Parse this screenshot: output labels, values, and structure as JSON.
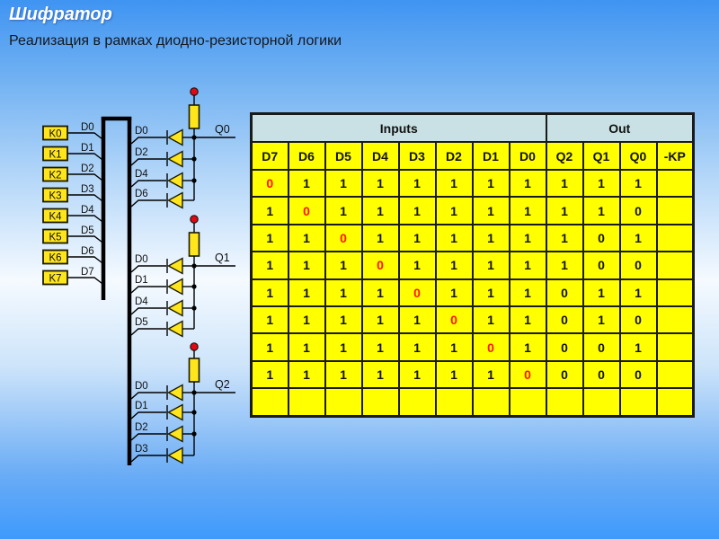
{
  "slide": {
    "title": "Шифратор",
    "subtitle": "Реализация в рамках диодно-резисторной логики"
  },
  "circuit": {
    "inputs": [
      {
        "k": "K0",
        "d": "D0"
      },
      {
        "k": "K1",
        "d": "D1"
      },
      {
        "k": "K2",
        "d": "D2"
      },
      {
        "k": "K3",
        "d": "D3"
      },
      {
        "k": "K4",
        "d": "D4"
      },
      {
        "k": "K5",
        "d": "D5"
      },
      {
        "k": "K6",
        "d": "D6"
      },
      {
        "k": "K7",
        "d": "D7"
      }
    ],
    "groups": [
      {
        "output": "Q0",
        "diodes": [
          "D0",
          "D2",
          "D4",
          "D6"
        ]
      },
      {
        "output": "Q1",
        "diodes": [
          "D0",
          "D1",
          "D4",
          "D5"
        ]
      },
      {
        "output": "Q2",
        "diodes": [
          "D0",
          "D1",
          "D2",
          "D3"
        ]
      }
    ]
  },
  "table": {
    "group_headers": [
      "Inputs",
      "Out"
    ],
    "columns": [
      "D7",
      "D6",
      "D5",
      "D4",
      "D3",
      "D2",
      "D1",
      "D0",
      "Q2",
      "Q1",
      "Q0",
      "-KP"
    ],
    "rows": [
      {
        "cells": [
          "0",
          "1",
          "1",
          "1",
          "1",
          "1",
          "1",
          "1",
          "1",
          "1",
          "1",
          ""
        ],
        "red_col": 0
      },
      {
        "cells": [
          "1",
          "0",
          "1",
          "1",
          "1",
          "1",
          "1",
          "1",
          "1",
          "1",
          "0",
          ""
        ],
        "red_col": 1
      },
      {
        "cells": [
          "1",
          "1",
          "0",
          "1",
          "1",
          "1",
          "1",
          "1",
          "1",
          "0",
          "1",
          ""
        ],
        "red_col": 2
      },
      {
        "cells": [
          "1",
          "1",
          "1",
          "0",
          "1",
          "1",
          "1",
          "1",
          "1",
          "0",
          "0",
          ""
        ],
        "red_col": 3
      },
      {
        "cells": [
          "1",
          "1",
          "1",
          "1",
          "0",
          "1",
          "1",
          "1",
          "0",
          "1",
          "1",
          ""
        ],
        "red_col": 4
      },
      {
        "cells": [
          "1",
          "1",
          "1",
          "1",
          "1",
          "0",
          "1",
          "1",
          "0",
          "1",
          "0",
          ""
        ],
        "red_col": 5
      },
      {
        "cells": [
          "1",
          "1",
          "1",
          "1",
          "1",
          "1",
          "0",
          "1",
          "0",
          "0",
          "1",
          ""
        ],
        "red_col": 6
      },
      {
        "cells": [
          "1",
          "1",
          "1",
          "1",
          "1",
          "1",
          "1",
          "0",
          "0",
          "0",
          "0",
          ""
        ],
        "red_col": 7
      },
      {
        "cells": [
          "",
          "",
          "",
          "",
          "",
          "",
          "",
          "",
          "",
          "",
          "",
          ""
        ],
        "red_col": -1
      }
    ]
  },
  "colors": {
    "background_top": "#3f94f2",
    "background_middle": "#f5faff",
    "background_bottom": "#3e9afd",
    "table_cell_yellow": "#ffff00",
    "table_header_cyan": "#c9e1e4",
    "component_yellow": "#ffe51c",
    "red_zero": "#ff1400",
    "power_dot_red": "#e30613",
    "title_white": "#ffffff"
  }
}
